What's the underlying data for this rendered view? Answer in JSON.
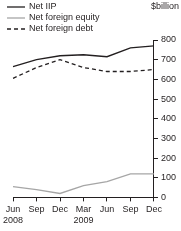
{
  "chart_data": {
    "type": "line",
    "categories": [
      "Jun 2008",
      "Sep",
      "Dec",
      "Mar 2009",
      "Jun",
      "Sep",
      "Dec"
    ],
    "series": [
      {
        "name": "Net IIP",
        "color": "#231f20",
        "line_style": "solid",
        "values": [
          665,
          700,
          720,
          725,
          715,
          760,
          770
        ]
      },
      {
        "name": "Net foreign equity",
        "color": "#a6a6a6",
        "line_style": "solid",
        "values": [
          55,
          40,
          20,
          60,
          80,
          120,
          120
        ]
      },
      {
        "name": "Net foreign debt",
        "color": "#231f20",
        "line_style": "dashed",
        "values": [
          605,
          660,
          700,
          660,
          640,
          640,
          650
        ]
      }
    ],
    "ylabel": "$billion",
    "ylim": [
      0,
      800
    ],
    "yticks": [
      0,
      100,
      200,
      300,
      400,
      500,
      600,
      700,
      800
    ],
    "grid": false,
    "legend": "top-left"
  }
}
